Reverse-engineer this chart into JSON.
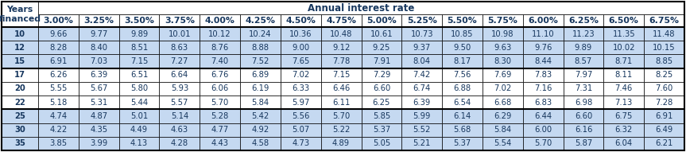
{
  "title": "Annual interest rate",
  "years_label": "Years\nfinanced",
  "col_headers": [
    "3.00%",
    "3.25%",
    "3.50%",
    "3.75%",
    "4.00%",
    "4.25%",
    "4.50%",
    "4.75%",
    "5.00%",
    "5.25%",
    "5.50%",
    "5.75%",
    "6.00%",
    "6.25%",
    "6.50%",
    "6.75%"
  ],
  "rows": [
    {
      "year": "10",
      "values": [
        "9.66",
        "9.77",
        "9.89",
        "10.01",
        "10.12",
        "10.24",
        "10.36",
        "10.48",
        "10.61",
        "10.73",
        "10.85",
        "10.98",
        "11.10",
        "11.23",
        "11.35",
        "11.48"
      ]
    },
    {
      "year": "12",
      "values": [
        "8.28",
        "8.40",
        "8.51",
        "8.63",
        "8.76",
        "8.88",
        "9.00",
        "9.12",
        "9.25",
        "9.37",
        "9.50",
        "9.63",
        "9.76",
        "9.89",
        "10.02",
        "10.15"
      ]
    },
    {
      "year": "15",
      "values": [
        "6.91",
        "7.03",
        "7.15",
        "7.27",
        "7.40",
        "7.52",
        "7.65",
        "7.78",
        "7.91",
        "8.04",
        "8.17",
        "8.30",
        "8.44",
        "8.57",
        "8.71",
        "8.85"
      ]
    },
    {
      "year": "17",
      "values": [
        "6.26",
        "6.39",
        "6.51",
        "6.64",
        "6.76",
        "6.89",
        "7.02",
        "7.15",
        "7.29",
        "7.42",
        "7.56",
        "7.69",
        "7.83",
        "7.97",
        "8.11",
        "8.25"
      ]
    },
    {
      "year": "20",
      "values": [
        "5.55",
        "5.67",
        "5.80",
        "5.93",
        "6.06",
        "6.19",
        "6.33",
        "6.46",
        "6.60",
        "6.74",
        "6.88",
        "7.02",
        "7.16",
        "7.31",
        "7.46",
        "7.60"
      ]
    },
    {
      "year": "22",
      "values": [
        "5.18",
        "5.31",
        "5.44",
        "5.57",
        "5.70",
        "5.84",
        "5.97",
        "6.11",
        "6.25",
        "6.39",
        "6.54",
        "6.68",
        "6.83",
        "6.98",
        "7.13",
        "7.28"
      ]
    },
    {
      "year": "25",
      "values": [
        "4.74",
        "4.87",
        "5.01",
        "5.14",
        "5.28",
        "5.42",
        "5.56",
        "5.70",
        "5.85",
        "5.99",
        "6.14",
        "6.29",
        "6.44",
        "6.60",
        "6.75",
        "6.91"
      ]
    },
    {
      "year": "30",
      "values": [
        "4.22",
        "4.35",
        "4.49",
        "4.63",
        "4.77",
        "4.92",
        "5.07",
        "5.22",
        "5.37",
        "5.52",
        "5.68",
        "5.84",
        "6.00",
        "6.16",
        "6.32",
        "6.49"
      ]
    },
    {
      "year": "35",
      "values": [
        "3.85",
        "3.99",
        "4.13",
        "4.28",
        "4.43",
        "4.58",
        "4.73",
        "4.89",
        "5.05",
        "5.21",
        "5.37",
        "5.54",
        "5.70",
        "5.87",
        "6.04",
        "6.21"
      ]
    }
  ],
  "group_separators_after": [
    2,
    5
  ],
  "bg_white": "#ffffff",
  "bg_blue": "#c5d9f1",
  "text_color": "#17375e",
  "border_color": "#000000",
  "font_size": 7.2,
  "header_font_size": 7.8,
  "title_font_size": 8.5
}
